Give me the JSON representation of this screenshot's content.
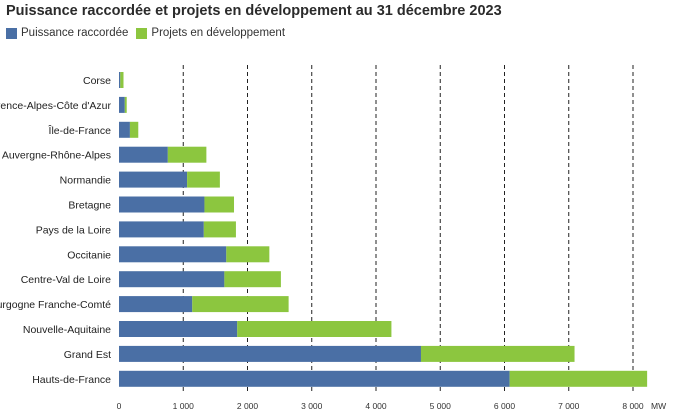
{
  "colors": {
    "raccordee": "#4a6fa5",
    "developpement": "#8cc63f"
  },
  "chart_data": {
    "type": "bar",
    "orientation": "horizontal",
    "stacked": true,
    "title": "Puissance raccordée et projets en développement au 31 décembre 2023",
    "categories": [
      "Corse",
      "Provence-Alpes-Côte d'Azur",
      "Île-de-France",
      "Auvergne-Rhône-Alpes",
      "Normandie",
      "Bretagne",
      "Pays de la Loire",
      "Occitanie",
      "Centre-Val de Loire",
      "Bourgogne Franche-Comté",
      "Nouvelle-Aquitaine",
      "Grand Est",
      "Hauts-de-France"
    ],
    "series": [
      {
        "name": "Puissance raccordée",
        "values": [
          20,
          90,
          170,
          760,
          1060,
          1330,
          1320,
          1670,
          1640,
          1140,
          1840,
          4700,
          6080
        ]
      },
      {
        "name": "Projets en développement",
        "values": [
          50,
          30,
          130,
          600,
          510,
          460,
          500,
          670,
          880,
          1500,
          2400,
          2390,
          2140
        ]
      }
    ],
    "xlim": [
      0,
      8200
    ],
    "xticks": [
      "0",
      "1 000",
      "2 000",
      "3 000",
      "4 000",
      "5 000",
      "6 000",
      "7 000",
      "8 000"
    ],
    "xunit": "MW",
    "grid": "vertical dashed",
    "legend": "top-left"
  }
}
